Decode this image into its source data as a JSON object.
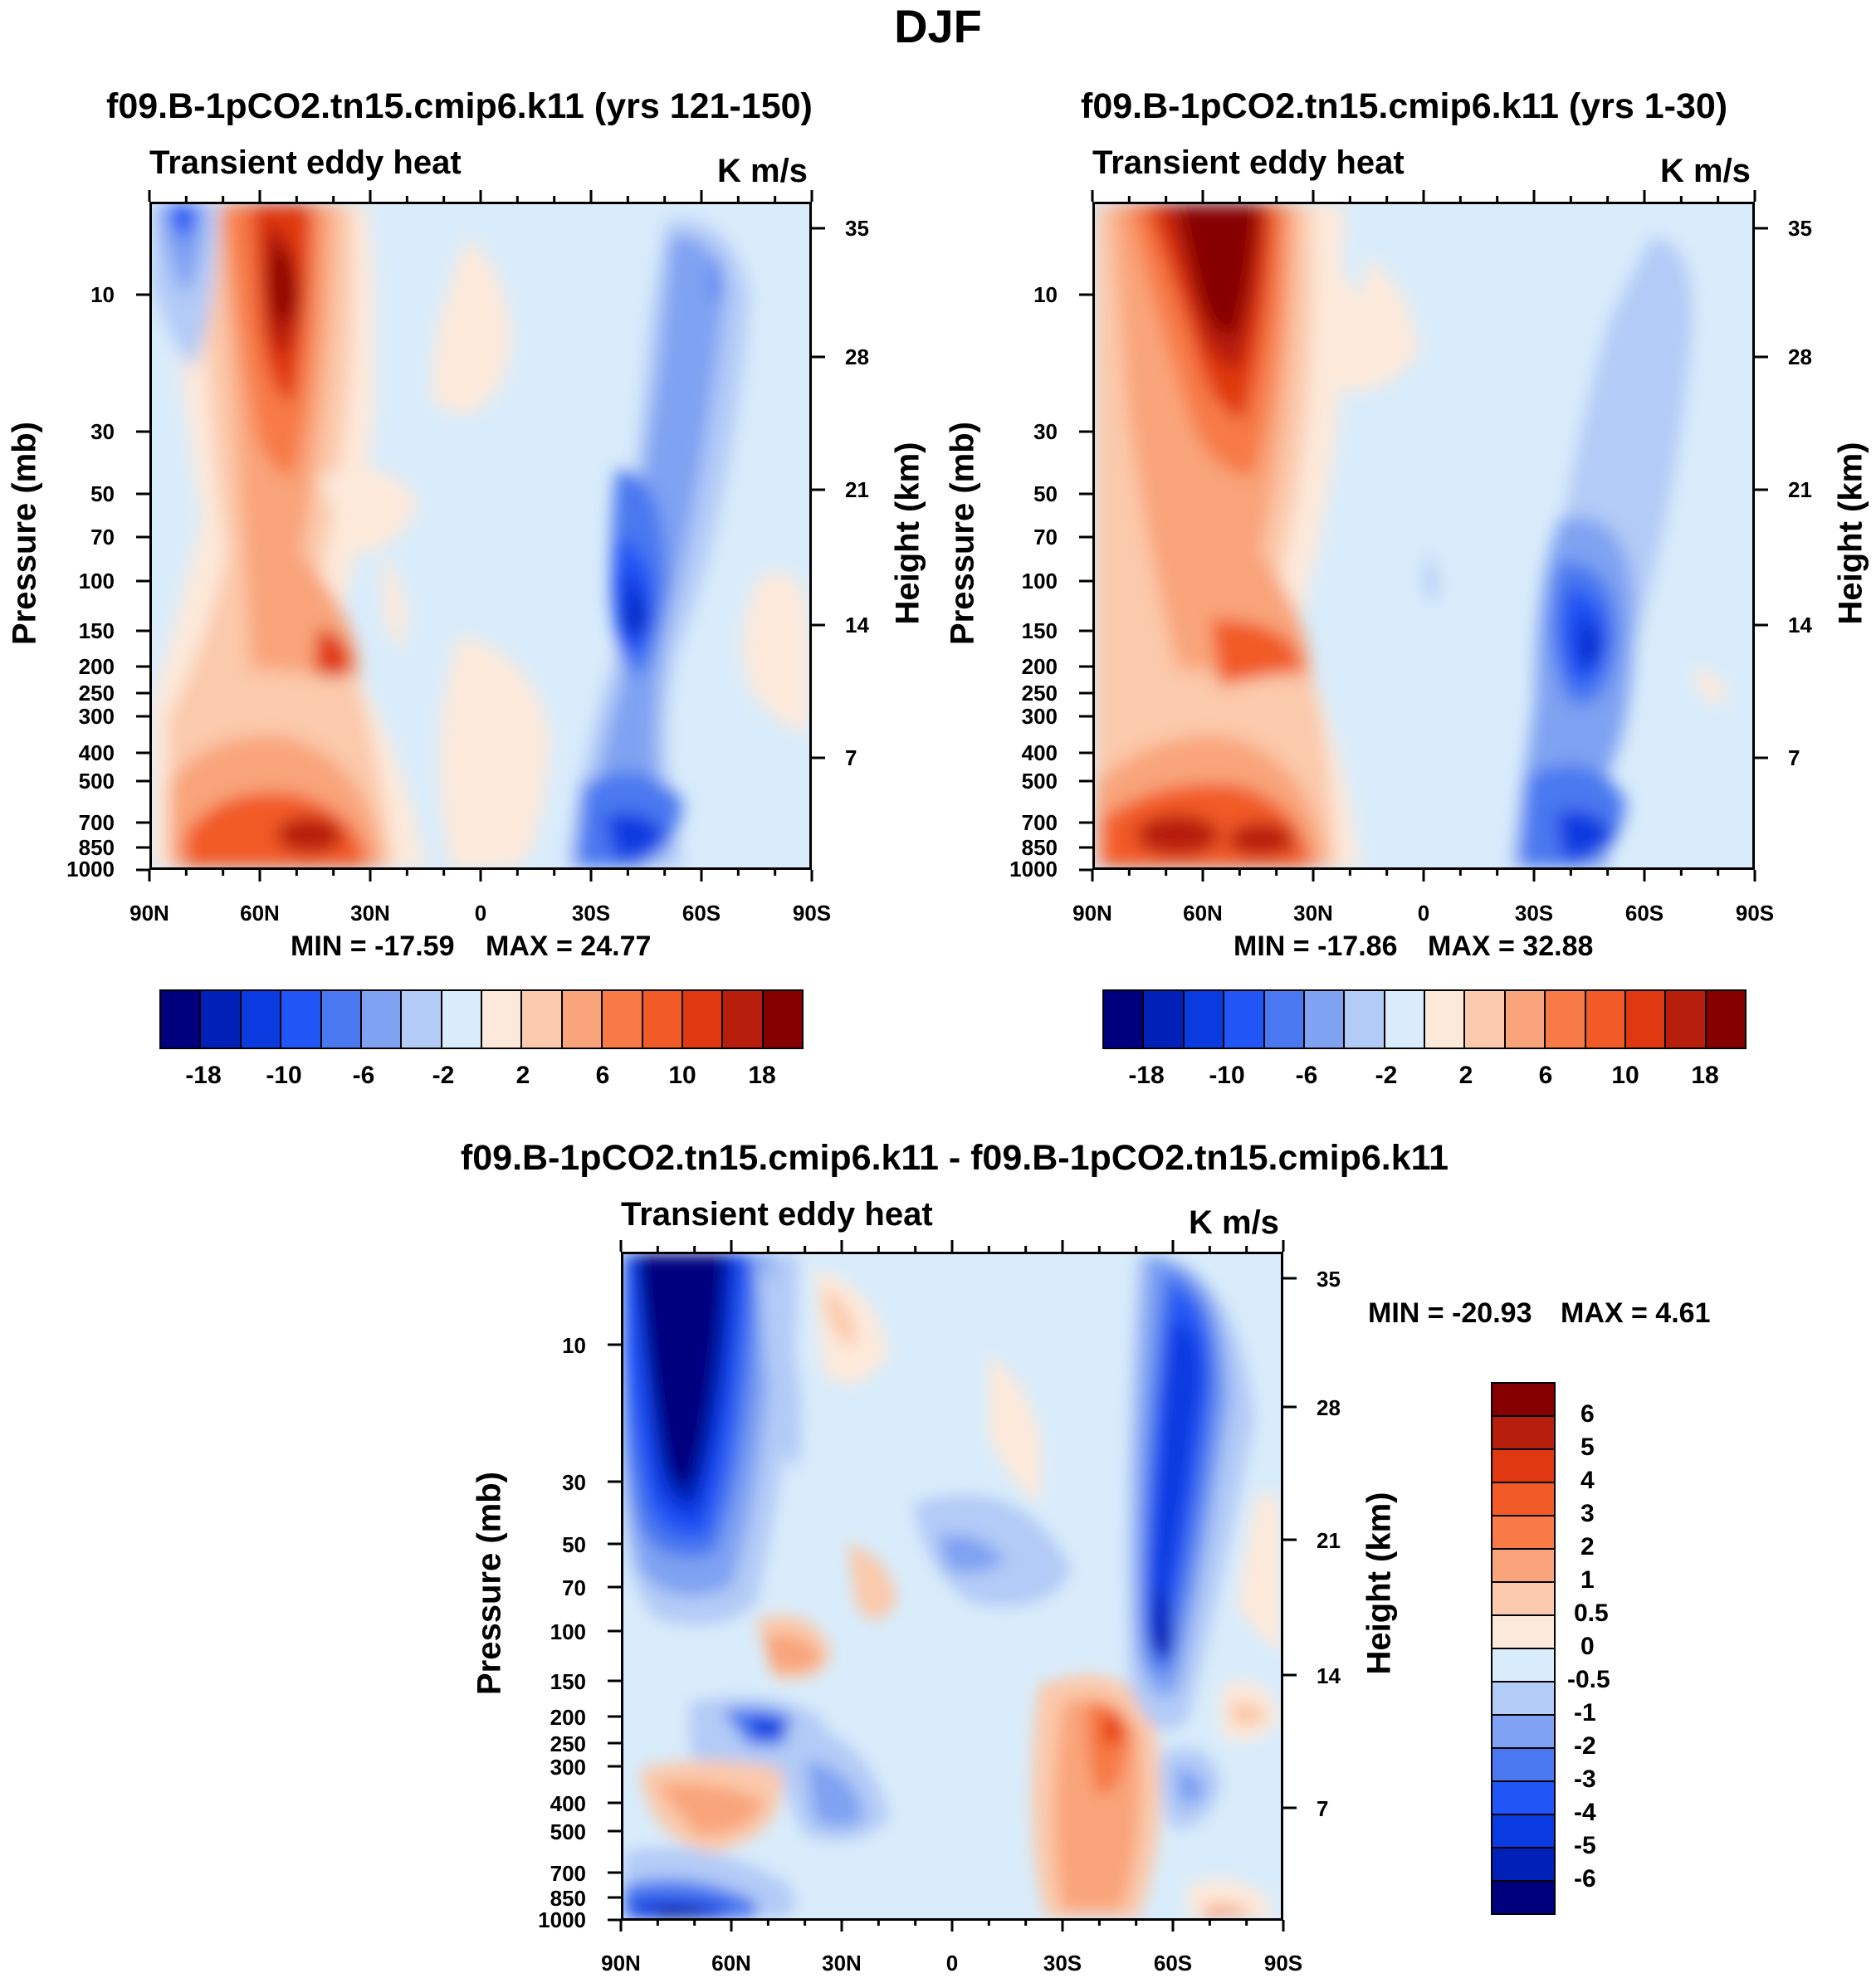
{
  "figure": {
    "title": "DJF"
  },
  "chart_data": [
    {
      "type": "heatmap",
      "panel": "top-left",
      "title": "f09.B-1pCO2.tn15.cmip6.k11 (yrs 121-150)",
      "subtitle": "Transient eddy heat",
      "units": "K m/s",
      "xlabel": "",
      "ylabel": "Pressure (mb)",
      "y2label": "Height (km)",
      "x_ticks": [
        "90N",
        "60N",
        "30N",
        "0",
        "30S",
        "60S",
        "90S"
      ],
      "y_ticks": [
        "10",
        "30",
        "50",
        "70",
        "100",
        "150",
        "200",
        "250",
        "300",
        "400",
        "500",
        "700",
        "850",
        "1000"
      ],
      "y2_ticks": [
        "35",
        "28",
        "21",
        "14",
        "7"
      ],
      "min_label": "MIN = -17.59",
      "max_label": "MAX =  24.77",
      "min": -17.59,
      "max": 24.77,
      "colorbar_ticks": [
        "-18",
        "-10",
        "-6",
        "-2",
        "2",
        "6",
        "10",
        "18"
      ]
    },
    {
      "type": "heatmap",
      "panel": "top-right",
      "title": "f09.B-1pCO2.tn15.cmip6.k11 (yrs 1-30)",
      "subtitle": "Transient eddy heat",
      "units": "K m/s",
      "xlabel": "",
      "ylabel": "Pressure (mb)",
      "y2label": "Height (km)",
      "x_ticks": [
        "90N",
        "60N",
        "30N",
        "0",
        "30S",
        "60S",
        "90S"
      ],
      "y_ticks": [
        "10",
        "30",
        "50",
        "70",
        "100",
        "150",
        "200",
        "250",
        "300",
        "400",
        "500",
        "700",
        "850",
        "1000"
      ],
      "y2_ticks": [
        "35",
        "28",
        "21",
        "14",
        "7"
      ],
      "min_label": "MIN = -17.86",
      "max_label": "MAX =  32.88",
      "min": -17.86,
      "max": 32.88,
      "colorbar_ticks": [
        "-18",
        "-10",
        "-6",
        "-2",
        "2",
        "6",
        "10",
        "18"
      ]
    },
    {
      "type": "heatmap",
      "panel": "bottom",
      "title": "f09.B-1pCO2.tn15.cmip6.k11 - f09.B-1pCO2.tn15.cmip6.k11",
      "subtitle": "Transient eddy heat",
      "units": "K m/s",
      "xlabel": "",
      "ylabel": "Pressure (mb)",
      "y2label": "Height (km)",
      "x_ticks": [
        "90N",
        "60N",
        "30N",
        "0",
        "30S",
        "60S",
        "90S"
      ],
      "y_ticks": [
        "10",
        "30",
        "50",
        "70",
        "100",
        "150",
        "200",
        "250",
        "300",
        "400",
        "500",
        "700",
        "850",
        "1000"
      ],
      "y2_ticks": [
        "35",
        "28",
        "21",
        "14",
        "7"
      ],
      "min_label": "MIN = -20.93",
      "max_label": "MAX =   4.61",
      "min": -20.93,
      "max": 4.61,
      "colorbar_ticks": [
        "6",
        "5",
        "4",
        "3",
        "2",
        "1",
        "0.5",
        "0",
        "-0.5",
        "-1",
        "-2",
        "-3",
        "-4",
        "-5",
        "-6"
      ]
    }
  ],
  "colorbar": {
    "top_colors": [
      "#00007f",
      "#0020b8",
      "#0a3be0",
      "#2155f5",
      "#4a78f0",
      "#7fa2f2",
      "#b3cbf7",
      "#d9ecfb",
      "#fde9da",
      "#fbc9ab",
      "#f9a47a",
      "#f77a47",
      "#f25a28",
      "#e03810",
      "#b81e0c",
      "#870000"
    ],
    "bottom_colors": [
      "#870000",
      "#b81e0c",
      "#e03810",
      "#f25a28",
      "#f77a47",
      "#f9a47a",
      "#fbc9ab",
      "#fde9da",
      "#d9ecfb",
      "#b3cbf7",
      "#7fa2f2",
      "#4a78f0",
      "#2155f5",
      "#0a3be0",
      "#0020b8",
      "#00007f"
    ]
  }
}
